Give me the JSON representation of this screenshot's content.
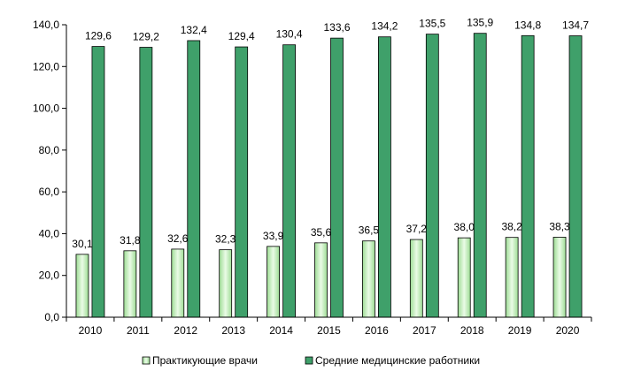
{
  "chart_data": {
    "type": "bar",
    "categories": [
      "2010",
      "2011",
      "2012",
      "2013",
      "2014",
      "2015",
      "2016",
      "2017",
      "2018",
      "2019",
      "2020"
    ],
    "series": [
      {
        "name": "Практикующие врачи",
        "values": [
          30.1,
          31.8,
          32.6,
          32.3,
          33.9,
          35.6,
          36.5,
          37.2,
          38.0,
          38.2,
          38.3
        ],
        "labels": [
          "30,1",
          "31,8",
          "32,6",
          "32,3",
          "33,9",
          "35,6",
          "36,5",
          "37,2",
          "38,0",
          "38,2",
          "38,3"
        ],
        "color": "#c6efc0"
      },
      {
        "name": "Средние медицинские работники",
        "values": [
          129.6,
          129.2,
          132.4,
          129.4,
          130.4,
          133.6,
          134.2,
          135.5,
          135.9,
          134.8,
          134.7
        ],
        "labels": [
          "129,6",
          "129,2",
          "132,4",
          "129,4",
          "130,4",
          "133,6",
          "134,2",
          "135,5",
          "135,9",
          "134,8",
          "134,7"
        ],
        "color": "#3fa06a"
      }
    ],
    "ylim": [
      0,
      140
    ],
    "y_ticks": [
      "0,0",
      "20,0",
      "40,0",
      "60,0",
      "80,0",
      "100,0",
      "120,0",
      "140,0"
    ],
    "grid": false,
    "legend_position": "bottom"
  }
}
